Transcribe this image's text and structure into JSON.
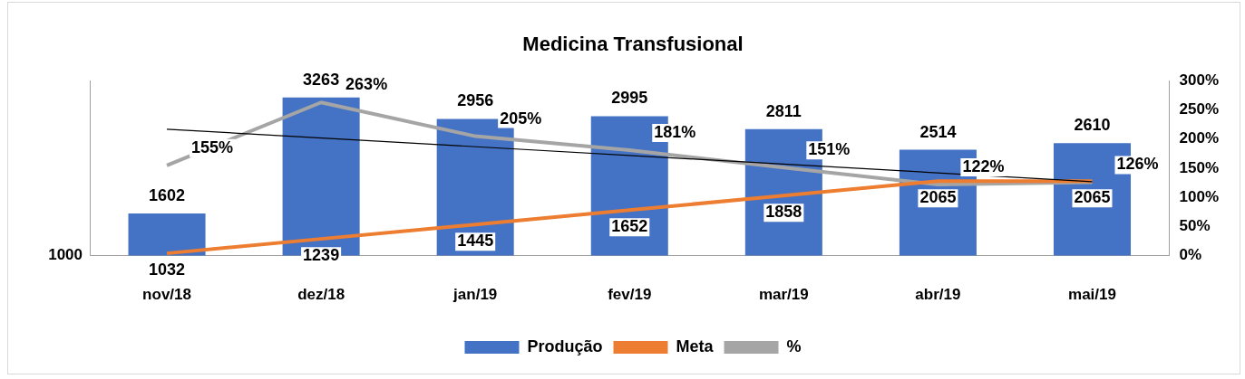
{
  "chart_data": {
    "type": "bar",
    "title": "Medicina Transfusional",
    "categories": [
      "nov/18",
      "dez/18",
      "jan/19",
      "fev/19",
      "mar/19",
      "abr/19",
      "mai/19"
    ],
    "series": [
      {
        "name": "Produção",
        "color": "#4472c4",
        "values": [
          1602,
          3263,
          2956,
          2995,
          2811,
          2514,
          2610
        ],
        "value_labels": [
          "1602",
          "3263",
          "2956",
          "2995",
          "2811",
          "2514",
          "2610"
        ]
      },
      {
        "name": "Meta",
        "type": "line",
        "color": "#ed7d31",
        "values": [
          1032,
          1239,
          1445,
          1652,
          1858,
          2065,
          2065
        ],
        "value_labels": [
          "1032",
          "1239",
          "1445",
          "1652",
          "1858",
          "2065",
          "2065"
        ]
      },
      {
        "name": "%",
        "type": "line",
        "axis": "y2",
        "color": "#a5a5a5",
        "values": [
          155,
          263,
          205,
          181,
          151,
          122,
          126
        ],
        "value_labels": [
          "155%",
          "263%",
          "205%",
          "181%",
          "151%",
          "122%",
          "126%"
        ]
      },
      {
        "type": "line",
        "axis": "y2",
        "color": "#000000",
        "x": [
          "nov/18",
          "mai/19"
        ],
        "values": [
          217,
          127
        ]
      }
    ],
    "ylim": [
      1000,
      3500
    ],
    "annotations": [
      "1000"
    ],
    "y2lim": [
      0,
      300
    ],
    "y2ticks": [
      {
        "value": 0,
        "label": "0%"
      },
      {
        "value": 50,
        "label": "50%"
      },
      {
        "value": 100,
        "label": "100%"
      },
      {
        "value": 150,
        "label": "150%"
      },
      {
        "value": 200,
        "label": "200%"
      },
      {
        "value": 250,
        "label": "250%"
      },
      {
        "value": 300,
        "label": "300%"
      }
    ],
    "grid": false,
    "legend": "bottom",
    "marker": "none"
  }
}
